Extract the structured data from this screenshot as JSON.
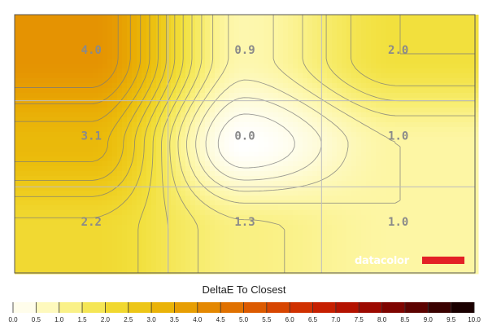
{
  "chart_data": {
    "type": "heatmap",
    "title": "",
    "xlabel": "",
    "ylabel": "",
    "legend_title": "DeltaE To Closest",
    "rows": 3,
    "cols": 3,
    "values": [
      [
        4.0,
        0.9,
        2.0
      ],
      [
        3.1,
        0.0,
        1.0
      ],
      [
        2.2,
        1.3,
        1.0
      ]
    ],
    "labels": [
      [
        "4.0",
        "0.9",
        "2.0"
      ],
      [
        "3.1",
        "0.0",
        "1.0"
      ],
      [
        "2.2",
        "1.3",
        "1.0"
      ]
    ],
    "scale_range": [
      0,
      10
    ],
    "scale_ticks": [
      "0.0",
      "0.5",
      "1.0",
      "1.5",
      "2.0",
      "2.5",
      "3.0",
      "3.5",
      "4.0",
      "4.5",
      "5.0",
      "5.5",
      "6.0",
      "6.5",
      "7.0",
      "7.5",
      "8.0",
      "8.5",
      "9.0",
      "9.5",
      "10.0"
    ],
    "colormap": [
      "#ffffff",
      "#fefbd6",
      "#fdf6a4",
      "#f7ec6c",
      "#f2e03d",
      "#efcf21",
      "#ebbd0c",
      "#e8a904",
      "#e59302",
      "#e27c00",
      "#dd6500",
      "#da4f00",
      "#d43a00",
      "#cc2600",
      "#bf1800",
      "#a90c00",
      "#8e0500",
      "#6e0200",
      "#4a0100",
      "#2a0000",
      "#0a0000"
    ],
    "grid": true,
    "watermark": "datacolor",
    "watermark_color": "#e32026"
  }
}
